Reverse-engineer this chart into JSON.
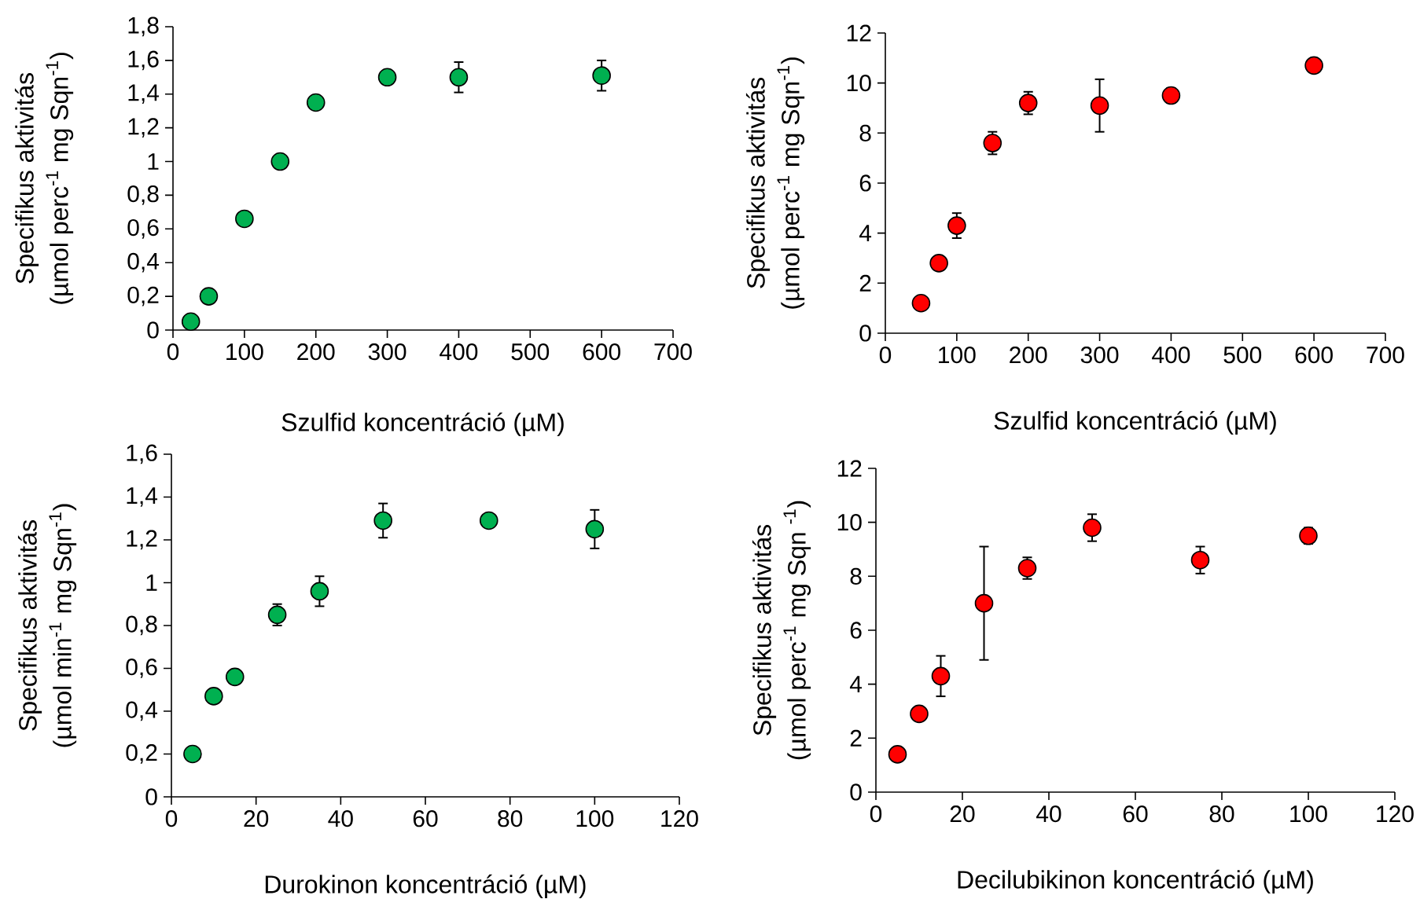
{
  "chart_data": [
    {
      "type": "scatter",
      "xlabel": "Szulfid koncentráció (µM)",
      "ylabel": "Specifikus aktivitás (µmol perc$^{-1}$ mg Sqn$^{-1}$)",
      "xlim": [
        0,
        700
      ],
      "ylim": [
        0,
        1.8
      ],
      "xticks": [
        0,
        100,
        200,
        300,
        400,
        500,
        600,
        700
      ],
      "yticks": [
        0,
        {
          "value": 0.2,
          "label": "0,2"
        },
        {
          "value": 0.4,
          "label": "0,4"
        },
        {
          "value": 0.6,
          "label": "0,6"
        },
        {
          "value": 0.8,
          "label": "0,8"
        },
        1,
        {
          "value": 1.2,
          "label": "1,2"
        },
        {
          "value": 1.4,
          "label": "1,4"
        },
        {
          "value": 1.6,
          "label": "1,6"
        },
        {
          "value": 1.8,
          "label": "1,8"
        }
      ],
      "x": [
        25,
        50,
        100,
        150,
        200,
        300,
        400,
        600
      ],
      "values": [
        0.05,
        0.2,
        0.66,
        1.0,
        1.35,
        1.5,
        1.5,
        1.51
      ],
      "errors": [
        null,
        null,
        null,
        null,
        0.04,
        null,
        0.09,
        0.09
      ],
      "color": "#00b050",
      "marker": "circle"
    },
    {
      "type": "scatter",
      "xlabel": "Szulfid koncentráció (µM)",
      "ylabel": "Specifikus aktivitás (µmol perc$^{-1}$ mg Sqn$^{-1}$)",
      "xlim": [
        0,
        700
      ],
      "ylim": [
        0,
        12
      ],
      "xticks": [
        0,
        100,
        200,
        300,
        400,
        500,
        600,
        700
      ],
      "yticks": [
        0,
        2,
        4,
        6,
        8,
        10,
        12
      ],
      "x": [
        50,
        75,
        100,
        150,
        200,
        300,
        400,
        600
      ],
      "values": [
        1.2,
        2.8,
        4.3,
        7.6,
        9.2,
        9.1,
        9.5,
        10.7
      ],
      "errors": [
        null,
        null,
        0.5,
        0.45,
        0.45,
        1.05,
        0.3,
        0.2
      ],
      "color": "#ff0000",
      "marker": "circle"
    },
    {
      "type": "scatter",
      "xlabel": "Durokinon koncentráció (µM)",
      "ylabel": "Specifikus aktivitás (µmol min$^{-1}$ mg Sqn$^{-1}$)",
      "xlim": [
        0,
        120
      ],
      "ylim": [
        0,
        1.6
      ],
      "xticks": [
        0,
        20,
        40,
        60,
        80,
        100,
        120
      ],
      "yticks": [
        0,
        {
          "value": 0.2,
          "label": "0,2"
        },
        {
          "value": 0.4,
          "label": "0,4"
        },
        {
          "value": 0.6,
          "label": "0,6"
        },
        {
          "value": 0.8,
          "label": "0,8"
        },
        1,
        {
          "value": 1.2,
          "label": "1,2"
        },
        {
          "value": 1.4,
          "label": "1,4"
        },
        {
          "value": 1.6,
          "label": "1,6"
        }
      ],
      "x": [
        5,
        10,
        15,
        25,
        35,
        50,
        75,
        100
      ],
      "values": [
        0.2,
        0.47,
        0.56,
        0.85,
        0.96,
        1.29,
        1.29,
        1.25
      ],
      "errors": [
        null,
        null,
        null,
        0.05,
        0.07,
        0.08,
        null,
        0.09
      ],
      "color": "#00b050",
      "marker": "circle"
    },
    {
      "type": "scatter",
      "xlabel": "Decilubikinon koncentráció (µM)",
      "ylabel": "Specifikus aktivitás (µmol perc$^{-1}$ mg Sqn $^{-1}$)",
      "xlim": [
        0,
        120
      ],
      "ylim": [
        0,
        12
      ],
      "xticks": [
        0,
        20,
        40,
        60,
        80,
        100,
        120
      ],
      "yticks": [
        0,
        2,
        4,
        6,
        8,
        10,
        12
      ],
      "x": [
        5,
        10,
        15,
        25,
        35,
        50,
        75,
        100
      ],
      "values": [
        1.4,
        2.9,
        4.3,
        7.0,
        8.3,
        9.8,
        8.6,
        9.5
      ],
      "errors": [
        null,
        null,
        0.75,
        2.1,
        0.4,
        0.5,
        0.5,
        0.3
      ],
      "color": "#ff0000",
      "marker": "circle"
    }
  ]
}
